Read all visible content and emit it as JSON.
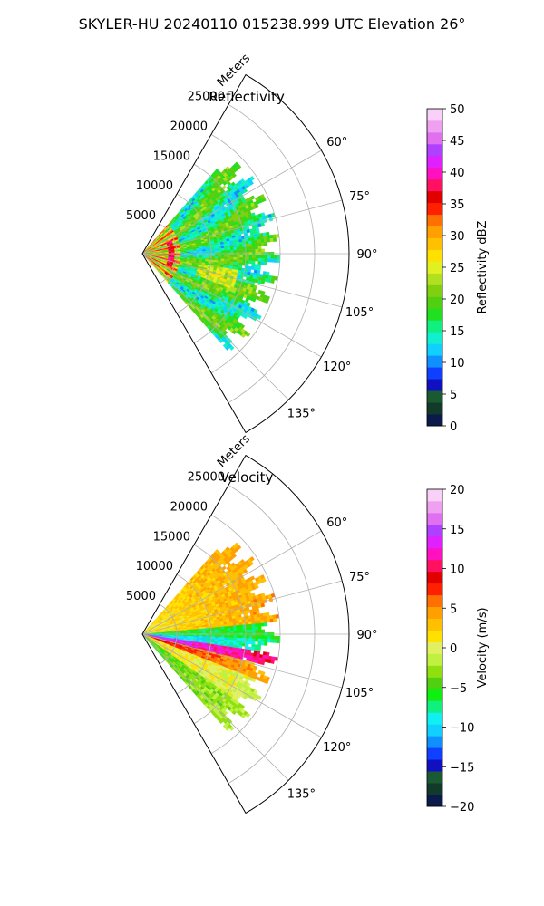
{
  "suptitle": "SKYLER-HU  20240110  015238.999 UTC Elevation 26°",
  "chart_data": [
    {
      "type": "polar-sector",
      "title": "Reflectivity",
      "radial_label": "Meters",
      "radial_ticks": [
        5000,
        10000,
        15000,
        20000,
        25000
      ],
      "radial_tick_labels": [
        "5000",
        "10000",
        "15000",
        "20000",
        "25000"
      ],
      "r_range": [
        0,
        30000
      ],
      "azimuth_range": [
        30,
        150
      ],
      "azimuth_ticks": [
        60,
        75,
        90,
        105,
        120,
        135
      ],
      "azimuth_tick_labels": [
        "60°",
        "75°",
        "90°",
        "105°",
        "120°",
        "135°"
      ],
      "grid": true,
      "colorbar": {
        "label": "Reflectivity dBZ",
        "vmin": 0,
        "vmax": 50,
        "ticks": [
          0,
          5,
          10,
          15,
          20,
          25,
          30,
          35,
          40,
          45,
          50
        ],
        "tick_labels": [
          "0",
          "5",
          "10",
          "15",
          "20",
          "25",
          "30",
          "35",
          "40",
          "45",
          "50"
        ]
      }
    },
    {
      "type": "polar-sector",
      "title": "Velocity",
      "radial_label": "Meters",
      "radial_ticks": [
        5000,
        10000,
        15000,
        20000,
        25000
      ],
      "radial_tick_labels": [
        "5000",
        "10000",
        "15000",
        "20000",
        "25000"
      ],
      "r_range": [
        0,
        30000
      ],
      "azimuth_range": [
        30,
        150
      ],
      "azimuth_ticks": [
        60,
        75,
        90,
        105,
        120,
        135
      ],
      "azimuth_tick_labels": [
        "60°",
        "75°",
        "90°",
        "105°",
        "120°",
        "135°"
      ],
      "grid": true,
      "colorbar": {
        "label": "Velocity (m/s)",
        "vmin": -20,
        "vmax": 20,
        "ticks": [
          -20,
          -15,
          -10,
          -5,
          0,
          5,
          10,
          15,
          20
        ],
        "tick_labels": [
          "−20",
          "−15",
          "−10",
          "−5",
          "0",
          "5",
          "10",
          "15",
          "20"
        ]
      }
    }
  ],
  "colormaps": {
    "reflectivity": [
      "#0a1a4a",
      "#123a2a",
      "#1a5a33",
      "#1010c0",
      "#1040ff",
      "#1090ff",
      "#10d0ff",
      "#10f0d0",
      "#10f080",
      "#20e020",
      "#50d010",
      "#80d010",
      "#b0e020",
      "#e0f020",
      "#ffe000",
      "#ffc000",
      "#ffa000",
      "#ff7000",
      "#ff2000",
      "#e00000",
      "#ff1060",
      "#ff10c0",
      "#e020ff",
      "#b040ff",
      "#e070f0",
      "#f0a0f0",
      "#f8d0f8"
    ],
    "velocity": [
      "#0a1a4a",
      "#123a2a",
      "#1a5a33",
      "#1010c0",
      "#1040ff",
      "#1090ff",
      "#10d0ff",
      "#10f0f0",
      "#10f080",
      "#10f010",
      "#50d010",
      "#90e010",
      "#c0f040",
      "#e0f060",
      "#ffe000",
      "#ffc000",
      "#ffa000",
      "#ff7000",
      "#ff2000",
      "#e00000",
      "#ff1060",
      "#ff10c0",
      "#e020ff",
      "#b040ff",
      "#e070f0",
      "#f0a0f0",
      "#f8d0f8"
    ]
  }
}
